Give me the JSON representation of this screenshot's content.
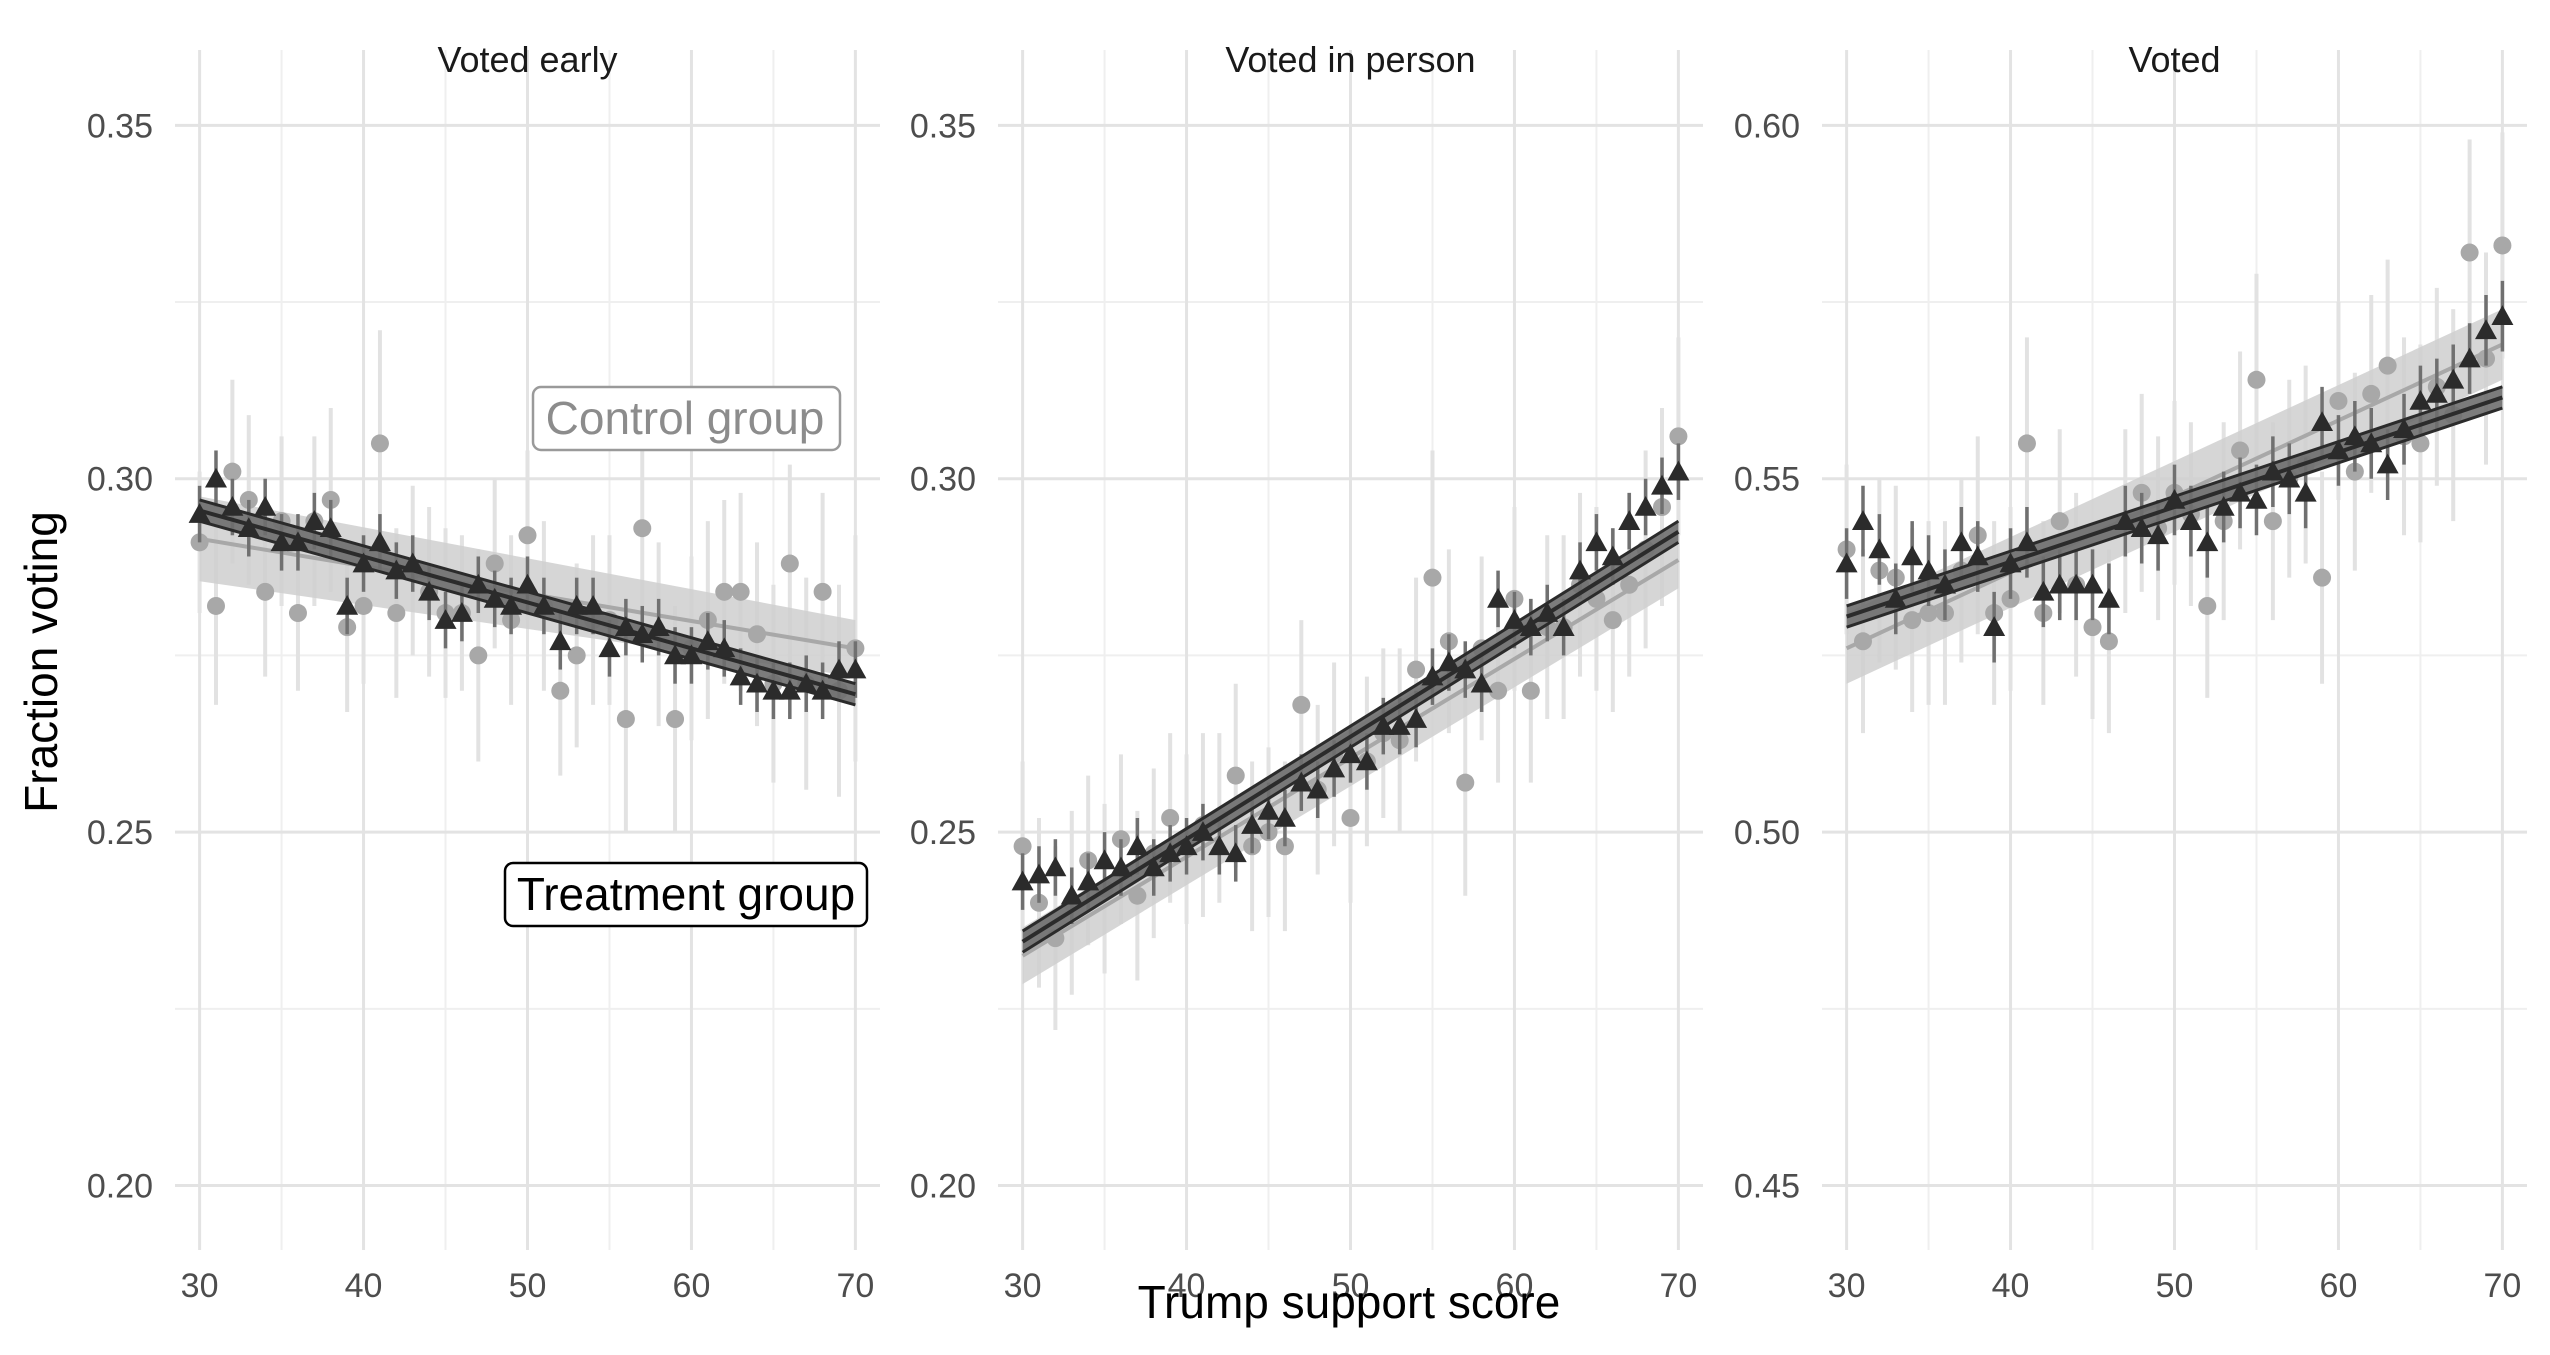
{
  "chart_data": {
    "type": "scatter",
    "xlabel": "Trump support score",
    "ylabel": "Fraction voting",
    "x_ticks": [
      30,
      40,
      50,
      60,
      70
    ],
    "xlim": [
      28.5,
      71.5
    ],
    "grid": true,
    "legend_labels": {
      "control": "Control group",
      "treatment": "Treatment group"
    },
    "legend_placement": "inside first panel, right",
    "colors": {
      "control": "#a8a8a8",
      "control_band": "#cfcfcf",
      "treatment": "#2b2b2b",
      "treatment_band": "#6e6e6e",
      "grid_major": "#e3e3e3",
      "grid_minor": "#efefef"
    },
    "panels": [
      {
        "title": "Voted early",
        "ylim": [
          0.193,
          0.355
        ],
        "y_ticks": [
          0.2,
          0.25,
          0.3,
          0.35
        ],
        "y_tick_labels": [
          "0.20",
          "0.25",
          "0.30",
          "0.35"
        ],
        "series": [
          {
            "name": "Control group",
            "fit": {
              "x": [
                30,
                70
              ],
              "y": [
                0.2915,
                0.276
              ],
              "se": [
                0.006,
                0.004
              ]
            },
            "x": [
              30,
              31,
              32,
              33,
              34,
              35,
              36,
              37,
              38,
              39,
              40,
              41,
              42,
              43,
              44,
              45,
              46,
              47,
              48,
              49,
              50,
              51,
              52,
              53,
              54,
              55,
              56,
              57,
              58,
              59,
              60,
              61,
              62,
              63,
              64,
              65,
              66,
              67,
              68,
              69,
              70
            ],
            "y": [
              0.291,
              0.282,
              0.301,
              0.297,
              0.284,
              0.294,
              0.281,
              0.294,
              0.297,
              0.279,
              0.282,
              0.305,
              0.281,
              0.287,
              0.284,
              0.281,
              0.281,
              0.275,
              0.288,
              0.28,
              0.292,
              0.282,
              0.27,
              0.275,
              0.28,
              0.28,
              0.266,
              0.293,
              0.278,
              0.266,
              0.276,
              0.28,
              0.284,
              0.284,
              0.278,
              0.271,
              0.288,
              0.271,
              0.284,
              0.27,
              0.276
            ],
            "err": [
              0.01,
              0.014,
              0.013,
              0.012,
              0.012,
              0.012,
              0.011,
              0.012,
              0.013,
              0.012,
              0.011,
              0.016,
              0.012,
              0.012,
              0.012,
              0.012,
              0.011,
              0.015,
              0.012,
              0.012,
              0.012,
              0.012,
              0.012,
              0.013,
              0.012,
              0.012,
              0.016,
              0.013,
              0.013,
              0.016,
              0.013,
              0.014,
              0.013,
              0.014,
              0.013,
              0.014,
              0.014,
              0.015,
              0.014,
              0.015,
              0.016
            ]
          },
          {
            "name": "Treatment group",
            "fit": {
              "x": [
                30,
                70
              ],
              "y": [
                0.2955,
                0.2695
              ],
              "se": [
                0.0015,
                0.0015
              ]
            },
            "x": [
              30,
              31,
              32,
              33,
              34,
              35,
              36,
              37,
              38,
              39,
              40,
              41,
              42,
              43,
              44,
              45,
              46,
              47,
              48,
              49,
              50,
              51,
              52,
              53,
              54,
              55,
              56,
              57,
              58,
              59,
              60,
              61,
              62,
              63,
              64,
              65,
              66,
              67,
              68,
              69,
              70
            ],
            "y": [
              0.295,
              0.3,
              0.296,
              0.293,
              0.296,
              0.291,
              0.291,
              0.294,
              0.293,
              0.282,
              0.288,
              0.291,
              0.287,
              0.288,
              0.284,
              0.28,
              0.281,
              0.285,
              0.283,
              0.282,
              0.285,
              0.282,
              0.277,
              0.282,
              0.282,
              0.276,
              0.279,
              0.278,
              0.279,
              0.275,
              0.275,
              0.277,
              0.276,
              0.272,
              0.271,
              0.27,
              0.27,
              0.271,
              0.27,
              0.273,
              0.273
            ],
            "err": [
              0.004,
              0.004,
              0.004,
              0.004,
              0.004,
              0.004,
              0.004,
              0.004,
              0.004,
              0.004,
              0.004,
              0.004,
              0.004,
              0.004,
              0.004,
              0.004,
              0.004,
              0.004,
              0.004,
              0.004,
              0.004,
              0.004,
              0.004,
              0.004,
              0.004,
              0.004,
              0.004,
              0.004,
              0.004,
              0.004,
              0.004,
              0.004,
              0.004,
              0.004,
              0.004,
              0.004,
              0.004,
              0.004,
              0.004,
              0.004,
              0.004
            ]
          }
        ]
      },
      {
        "title": "Voted in person",
        "ylim": [
          0.193,
          0.355
        ],
        "y_ticks": [
          0.2,
          0.25,
          0.3,
          0.35
        ],
        "y_tick_labels": [
          "0.20",
          "0.25",
          "0.30",
          "0.35"
        ],
        "series": [
          {
            "name": "Control group",
            "fit": {
              "x": [
                30,
                70
              ],
              "y": [
                0.2325,
                0.2885
              ],
              "se": [
                0.004,
                0.004
              ]
            },
            "x": [
              30,
              31,
              32,
              33,
              34,
              35,
              36,
              37,
              38,
              39,
              40,
              41,
              42,
              43,
              44,
              45,
              46,
              47,
              48,
              49,
              50,
              51,
              52,
              53,
              54,
              55,
              56,
              57,
              58,
              59,
              60,
              61,
              62,
              63,
              64,
              65,
              66,
              67,
              68,
              69,
              70
            ],
            "y": [
              0.248,
              0.24,
              0.235,
              0.24,
              0.246,
              0.242,
              0.249,
              0.241,
              0.247,
              0.252,
              0.249,
              0.251,
              0.252,
              0.258,
              0.248,
              0.25,
              0.248,
              0.268,
              0.256,
              0.261,
              0.252,
              0.26,
              0.264,
              0.263,
              0.273,
              0.286,
              0.277,
              0.257,
              0.276,
              0.27,
              0.283,
              0.27,
              0.279,
              0.279,
              0.285,
              0.283,
              0.28,
              0.285,
              0.29,
              0.296,
              0.306
            ],
            "err": [
              0.012,
              0.012,
              0.013,
              0.013,
              0.012,
              0.012,
              0.012,
              0.012,
              0.012,
              0.012,
              0.012,
              0.013,
              0.012,
              0.013,
              0.012,
              0.012,
              0.012,
              0.012,
              0.012,
              0.013,
              0.012,
              0.012,
              0.012,
              0.013,
              0.013,
              0.018,
              0.013,
              0.016,
              0.013,
              0.013,
              0.013,
              0.013,
              0.013,
              0.013,
              0.013,
              0.013,
              0.013,
              0.013,
              0.014,
              0.014,
              0.014
            ]
          },
          {
            "name": "Treatment group",
            "fit": {
              "x": [
                30,
                70
              ],
              "y": [
                0.2345,
                0.2925
              ],
              "se": [
                0.0015,
                0.0015
              ]
            },
            "x": [
              30,
              31,
              32,
              33,
              34,
              35,
              36,
              37,
              38,
              39,
              40,
              41,
              42,
              43,
              44,
              45,
              46,
              47,
              48,
              49,
              50,
              51,
              52,
              53,
              54,
              55,
              56,
              57,
              58,
              59,
              60,
              61,
              62,
              63,
              64,
              65,
              66,
              67,
              68,
              69,
              70
            ],
            "y": [
              0.243,
              0.244,
              0.245,
              0.241,
              0.243,
              0.246,
              0.245,
              0.248,
              0.245,
              0.247,
              0.248,
              0.25,
              0.248,
              0.247,
              0.251,
              0.253,
              0.252,
              0.257,
              0.256,
              0.259,
              0.261,
              0.26,
              0.265,
              0.265,
              0.266,
              0.272,
              0.274,
              0.273,
              0.271,
              0.283,
              0.28,
              0.279,
              0.281,
              0.279,
              0.287,
              0.291,
              0.289,
              0.294,
              0.296,
              0.299,
              0.301
            ],
            "err": [
              0.004,
              0.004,
              0.004,
              0.004,
              0.004,
              0.004,
              0.004,
              0.004,
              0.004,
              0.004,
              0.004,
              0.004,
              0.004,
              0.004,
              0.004,
              0.004,
              0.004,
              0.004,
              0.004,
              0.004,
              0.004,
              0.004,
              0.004,
              0.004,
              0.004,
              0.004,
              0.004,
              0.004,
              0.004,
              0.004,
              0.004,
              0.004,
              0.004,
              0.004,
              0.004,
              0.004,
              0.004,
              0.004,
              0.004,
              0.004,
              0.004
            ]
          }
        ]
      },
      {
        "title": "Voted",
        "ylim": [
          0.443,
          0.605
        ],
        "y_ticks": [
          0.45,
          0.5,
          0.55,
          0.6
        ],
        "y_tick_labels": [
          "0.45",
          "0.50",
          "0.55",
          "0.60"
        ],
        "series": [
          {
            "name": "Control group",
            "fit": {
              "x": [
                30,
                70
              ],
              "y": [
                0.526,
                0.569
              ],
              "se": [
                0.005,
                0.005
              ]
            },
            "x": [
              30,
              31,
              32,
              33,
              34,
              35,
              36,
              37,
              38,
              39,
              40,
              41,
              42,
              43,
              44,
              45,
              46,
              47,
              48,
              49,
              50,
              51,
              52,
              53,
              54,
              55,
              56,
              57,
              58,
              59,
              60,
              61,
              62,
              63,
              64,
              65,
              66,
              67,
              68,
              69,
              70
            ],
            "y": [
              0.54,
              0.527,
              0.537,
              0.536,
              0.53,
              0.531,
              0.531,
              0.537,
              0.542,
              0.531,
              0.533,
              0.555,
              0.531,
              0.544,
              0.535,
              0.529,
              0.527,
              0.544,
              0.548,
              0.543,
              0.548,
              0.545,
              0.532,
              0.544,
              0.554,
              0.564,
              0.544,
              0.55,
              0.552,
              0.536,
              0.561,
              0.551,
              0.562,
              0.566,
              0.556,
              0.555,
              0.563,
              0.559,
              0.582,
              0.567,
              0.583
            ],
            "err": [
              0.012,
              0.013,
              0.013,
              0.013,
              0.013,
              0.013,
              0.013,
              0.013,
              0.014,
              0.013,
              0.013,
              0.015,
              0.013,
              0.013,
              0.013,
              0.013,
              0.013,
              0.013,
              0.014,
              0.013,
              0.013,
              0.013,
              0.013,
              0.014,
              0.014,
              0.015,
              0.014,
              0.014,
              0.014,
              0.015,
              0.014,
              0.014,
              0.014,
              0.015,
              0.014,
              0.014,
              0.014,
              0.015,
              0.016,
              0.015,
              0.016
            ]
          },
          {
            "name": "Treatment group",
            "fit": {
              "x": [
                30,
                70
              ],
              "y": [
                0.5305,
                0.5615
              ],
              "se": [
                0.0015,
                0.0015
              ]
            },
            "x": [
              30,
              31,
              32,
              33,
              34,
              35,
              36,
              37,
              38,
              39,
              40,
              41,
              42,
              43,
              44,
              45,
              46,
              47,
              48,
              49,
              50,
              51,
              52,
              53,
              54,
              55,
              56,
              57,
              58,
              59,
              60,
              61,
              62,
              63,
              64,
              65,
              66,
              67,
              68,
              69,
              70
            ],
            "y": [
              0.538,
              0.544,
              0.54,
              0.533,
              0.539,
              0.537,
              0.535,
              0.541,
              0.539,
              0.529,
              0.538,
              0.541,
              0.534,
              0.535,
              0.535,
              0.535,
              0.533,
              0.544,
              0.543,
              0.542,
              0.547,
              0.544,
              0.541,
              0.546,
              0.548,
              0.547,
              0.551,
              0.55,
              0.548,
              0.558,
              0.554,
              0.556,
              0.555,
              0.552,
              0.557,
              0.561,
              0.562,
              0.564,
              0.567,
              0.571,
              0.573
            ],
            "err": [
              0.005,
              0.005,
              0.005,
              0.005,
              0.005,
              0.005,
              0.005,
              0.005,
              0.005,
              0.005,
              0.005,
              0.005,
              0.005,
              0.005,
              0.005,
              0.005,
              0.005,
              0.005,
              0.005,
              0.005,
              0.005,
              0.005,
              0.005,
              0.005,
              0.005,
              0.005,
              0.005,
              0.005,
              0.005,
              0.005,
              0.005,
              0.005,
              0.005,
              0.005,
              0.005,
              0.005,
              0.005,
              0.005,
              0.005,
              0.005,
              0.005
            ]
          }
        ]
      }
    ]
  }
}
